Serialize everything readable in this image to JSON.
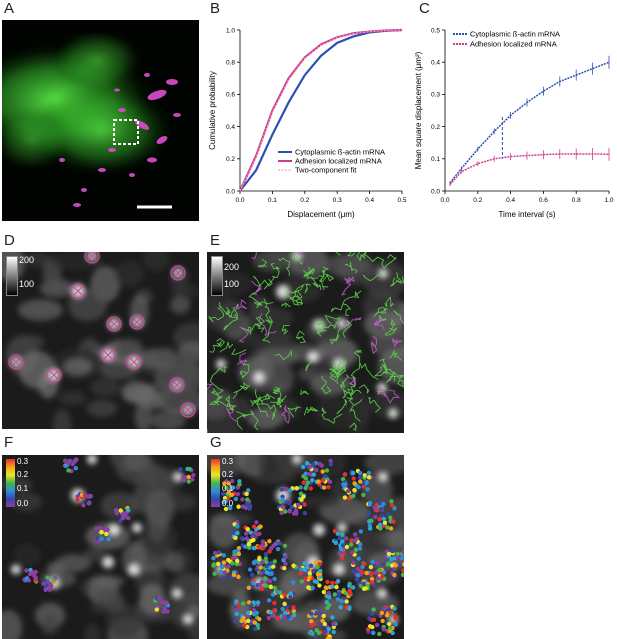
{
  "panels": {
    "A": {
      "letter": "A"
    },
    "B": {
      "letter": "B"
    },
    "C": {
      "letter": "C"
    },
    "D": {
      "letter": "D",
      "scale_high": "200",
      "scale_low": "100"
    },
    "E": {
      "letter": "E",
      "scale_high": "200",
      "scale_low": "100"
    },
    "F": {
      "letter": "F",
      "scale_ticks": [
        "0.3",
        "0.2",
        "0.1",
        "0.0"
      ]
    },
    "G": {
      "letter": "G",
      "scale_ticks": [
        "0.3",
        "0.2",
        "0.1",
        "0.0"
      ]
    }
  },
  "colors": {
    "cytoplasmic": "#2b4fb5",
    "adhesion": "#d13a8c",
    "fit": "#e6a2c9",
    "green": "#48e63a",
    "magenta": "#d24cc8"
  },
  "chart_data": [
    {
      "type": "line",
      "panel": "B",
      "xlabel": "Displacement (μm)",
      "ylabel": "Cumulative probability",
      "xlim": [
        0,
        0.5
      ],
      "ylim": [
        0,
        1.0
      ],
      "x_ticks": [
        "0.0",
        "0.1",
        "0.2",
        "0.3",
        "0.4",
        "0.5"
      ],
      "y_ticks": [
        "0.0",
        "0.2",
        "0.4",
        "0.6",
        "0.8",
        "1.0"
      ],
      "legend_position": "bottom-right",
      "legend": [
        "Cytoplasmic ß-actin mRNA",
        "Adhesion localized mRNA",
        "Two-component fit"
      ],
      "series": [
        {
          "name": "Cytoplasmic ß-actin mRNA",
          "x": [
            0,
            0.05,
            0.1,
            0.15,
            0.2,
            0.25,
            0.3,
            0.35,
            0.4,
            0.45,
            0.5
          ],
          "y": [
            0,
            0.13,
            0.35,
            0.55,
            0.72,
            0.84,
            0.92,
            0.96,
            0.985,
            0.995,
            1.0
          ]
        },
        {
          "name": "Adhesion localized mRNA",
          "x": [
            0,
            0.05,
            0.1,
            0.15,
            0.2,
            0.25,
            0.3,
            0.35,
            0.4,
            0.45,
            0.5
          ],
          "y": [
            0,
            0.22,
            0.5,
            0.7,
            0.83,
            0.91,
            0.955,
            0.98,
            0.99,
            0.997,
            1.0
          ]
        },
        {
          "name": "Two-component fit",
          "x": [
            0,
            0.05,
            0.1,
            0.15,
            0.2,
            0.25,
            0.3,
            0.35,
            0.4,
            0.45,
            0.5
          ],
          "y": [
            0,
            0.21,
            0.49,
            0.69,
            0.825,
            0.905,
            0.952,
            0.978,
            0.99,
            0.997,
            1.0
          ]
        }
      ]
    },
    {
      "type": "line",
      "panel": "C",
      "xlabel": "Time interval (s)",
      "ylabel": "Mean square displacement (μm²)",
      "xlim": [
        0,
        1.0
      ],
      "ylim": [
        0,
        0.5
      ],
      "x_ticks": [
        "0.0",
        "0.2",
        "0.4",
        "0.6",
        "0.8",
        "1.0"
      ],
      "y_ticks": [
        "0.0",
        "0.1",
        "0.2",
        "0.3",
        "0.4",
        "0.5"
      ],
      "legend_position": "top-left",
      "legend": [
        "Cytoplasmic ß-actin mRNA",
        "Adhesion localized mRNA"
      ],
      "series": [
        {
          "name": "Cytoplasmic ß-actin mRNA",
          "x": [
            0.03,
            0.1,
            0.2,
            0.3,
            0.4,
            0.5,
            0.6,
            0.7,
            0.8,
            0.9,
            1.0
          ],
          "y": [
            0.025,
            0.07,
            0.13,
            0.185,
            0.235,
            0.275,
            0.31,
            0.34,
            0.36,
            0.38,
            0.4
          ]
        },
        {
          "name": "Adhesion localized mRNA",
          "x": [
            0.03,
            0.1,
            0.2,
            0.3,
            0.4,
            0.5,
            0.6,
            0.7,
            0.8,
            0.9,
            1.0
          ],
          "y": [
            0.02,
            0.06,
            0.085,
            0.1,
            0.107,
            0.11,
            0.113,
            0.115,
            0.115,
            0.115,
            0.114
          ]
        }
      ]
    }
  ]
}
